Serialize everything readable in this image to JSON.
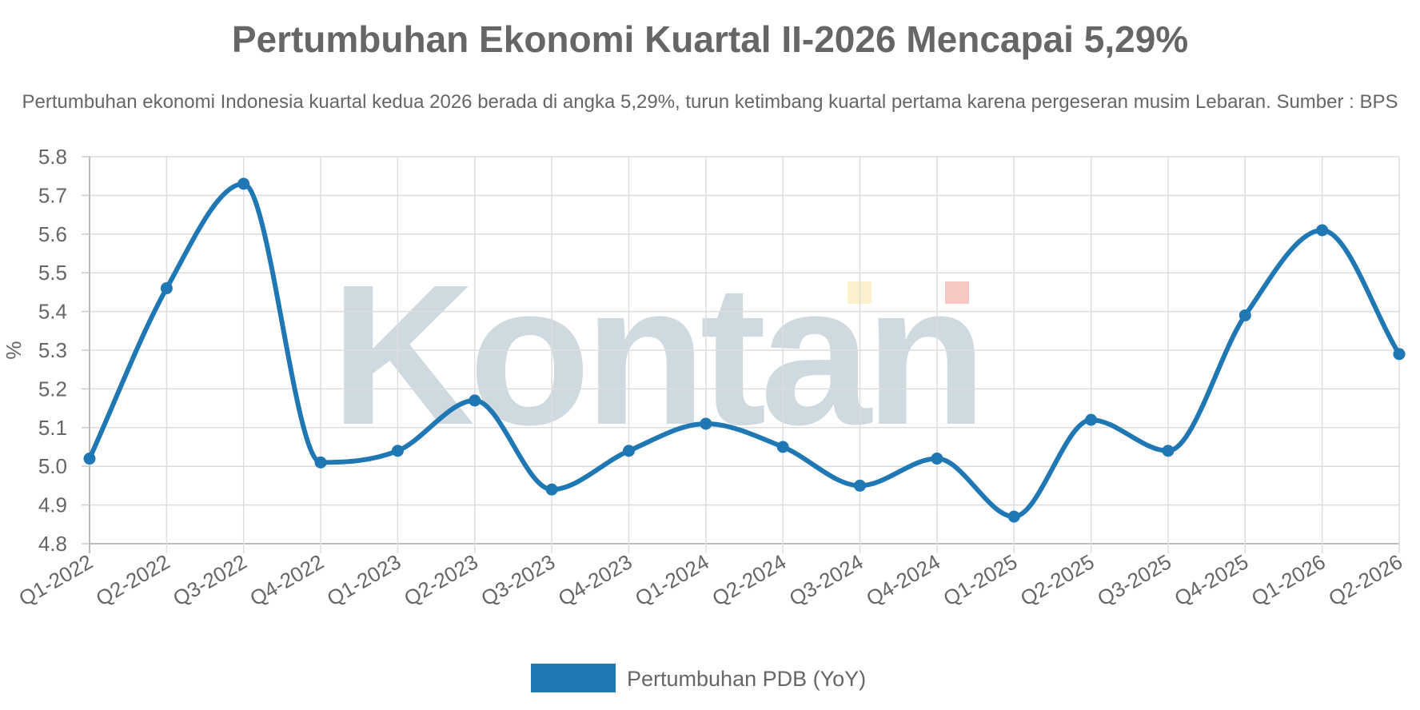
{
  "chart_data": {
    "type": "line",
    "title": "Pertumbuhan Ekonomi Kuartal II-2026 Mencapai 5,29%",
    "subtitle": "Pertumbuhan ekonomi Indonesia kuartal kedua 2026 berada di angka 5,29%, turun ketimbang kuartal pertama karena pergeseran musim Lebaran. Sumber : BPS",
    "xlabel": "",
    "ylabel": "%",
    "ylim": [
      4.8,
      5.8
    ],
    "yticks": [
      "4.8",
      "4.9",
      "5.0",
      "5.1",
      "5.2",
      "5.3",
      "5.4",
      "5.5",
      "5.6",
      "5.7",
      "5.8"
    ],
    "categories": [
      "Q1-2022",
      "Q2-2022",
      "Q3-2022",
      "Q4-2022",
      "Q1-2023",
      "Q2-2023",
      "Q3-2023",
      "Q4-2023",
      "Q1-2024",
      "Q2-2024",
      "Q3-2024",
      "Q4-2024",
      "Q1-2025",
      "Q2-2025",
      "Q3-2025",
      "Q4-2025",
      "Q1-2026",
      "Q2-2026"
    ],
    "series": [
      {
        "name": "Pertumbuhan PDB (YoY)",
        "color": "#1f77b4",
        "values": [
          5.02,
          5.46,
          5.73,
          5.01,
          5.04,
          5.17,
          4.94,
          5.04,
          5.11,
          5.05,
          4.95,
          5.02,
          4.87,
          5.12,
          5.04,
          5.39,
          5.61,
          5.29
        ]
      }
    ],
    "grid": true,
    "legend_position": "bottom",
    "curve": "smooth",
    "watermark": "Kontan"
  }
}
